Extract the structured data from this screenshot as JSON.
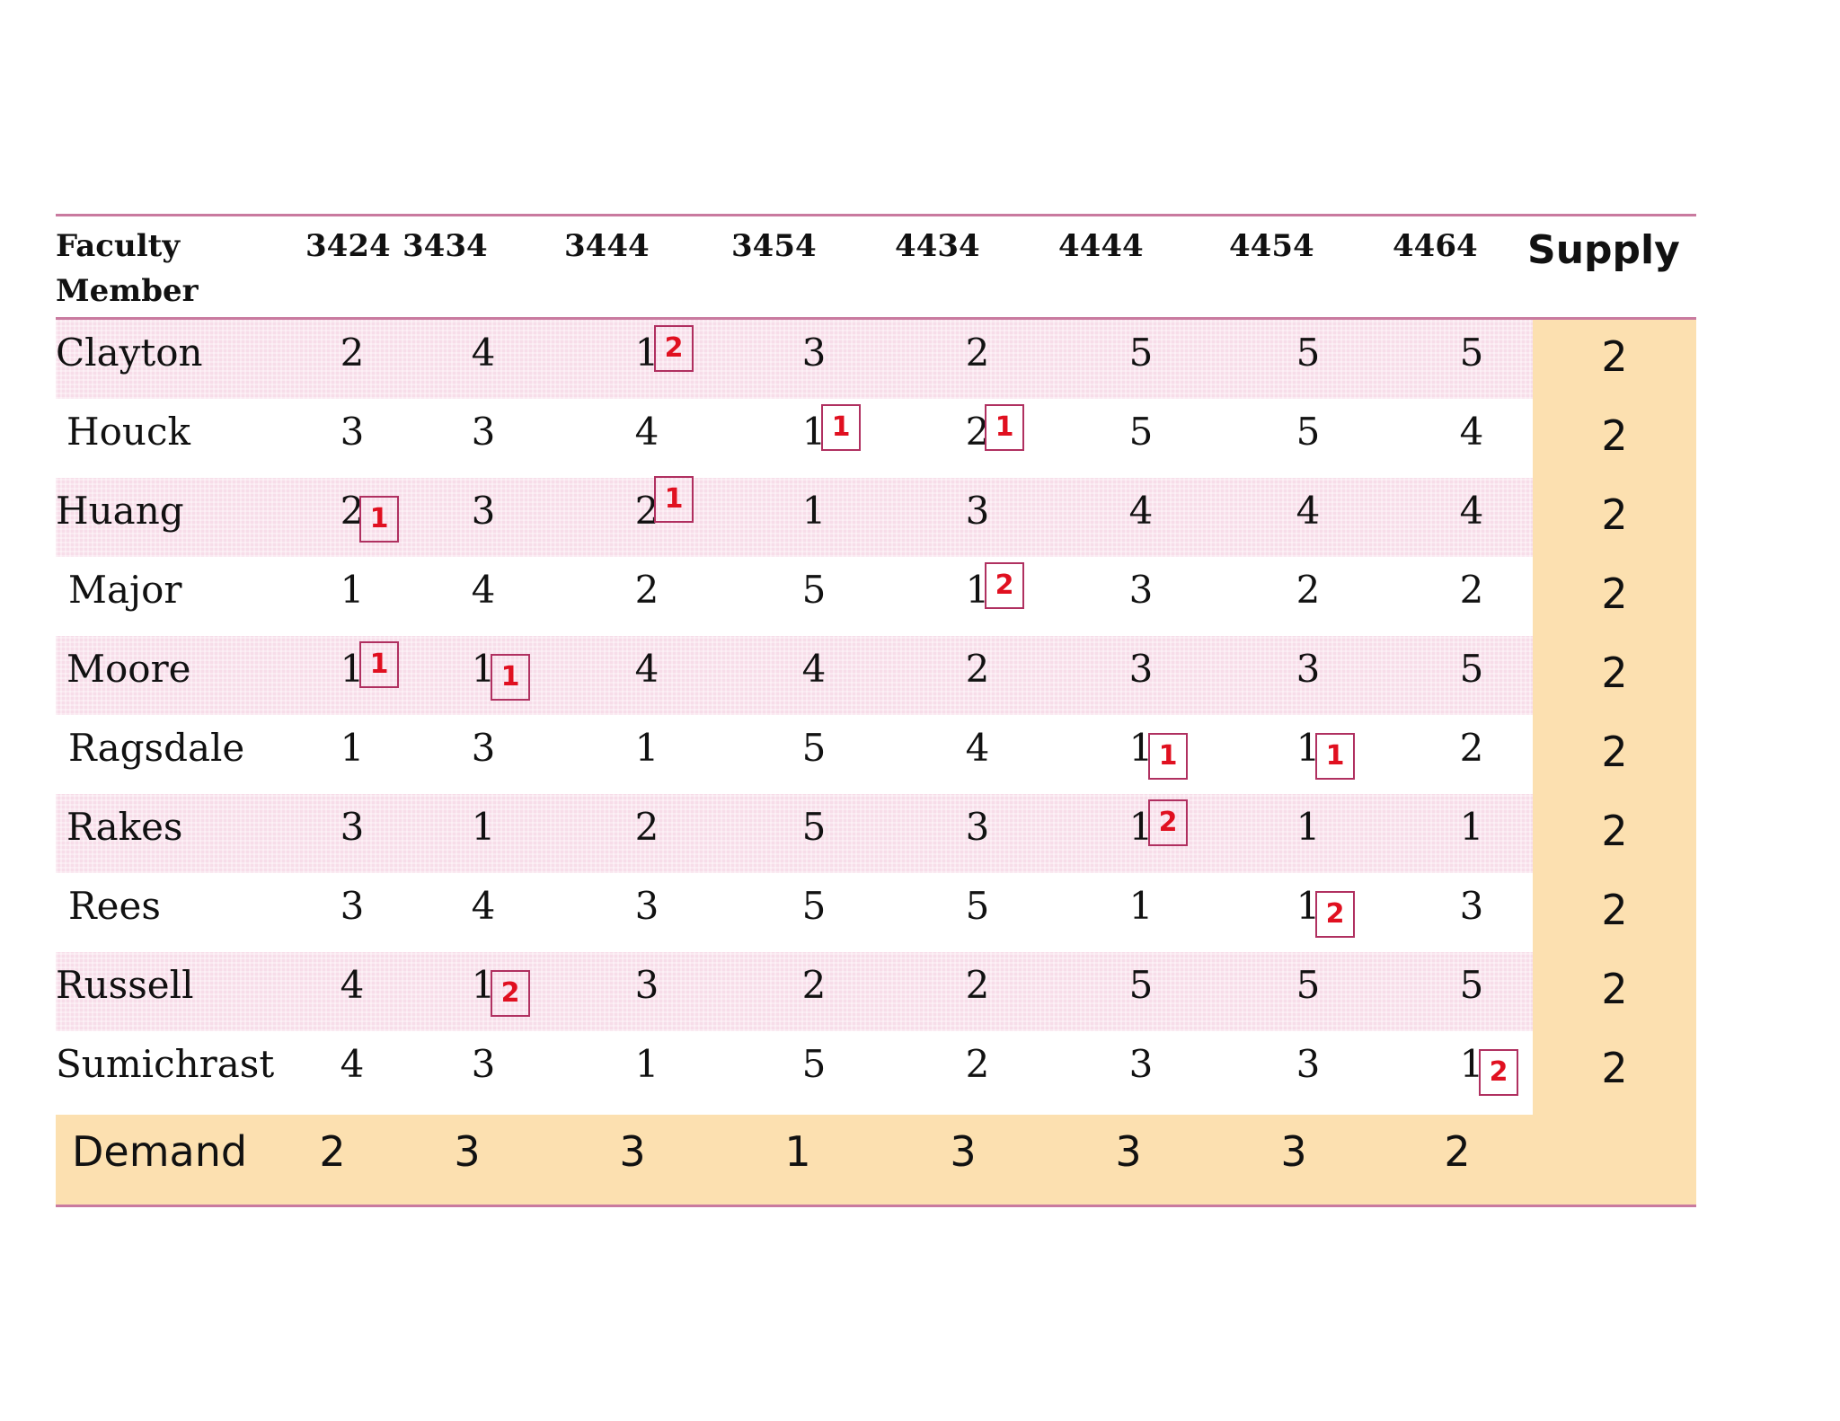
{
  "header": {
    "faculty_line1": "Faculty",
    "faculty_line2": "Member",
    "courses": [
      "3424",
      "3434",
      "3444",
      "3454",
      "4434",
      "4444",
      "4454",
      "4464"
    ],
    "supply_label": "Supply"
  },
  "rows": [
    {
      "name": "Clayton",
      "values": [
        "2",
        "4",
        "1",
        "3",
        "2",
        "5",
        "5",
        "5"
      ],
      "supply": "2"
    },
    {
      "name": "Houck",
      "values": [
        "3",
        "3",
        "4",
        "1",
        "2",
        "5",
        "5",
        "4"
      ],
      "supply": "2"
    },
    {
      "name": "Huang",
      "values": [
        "2",
        "3",
        "2",
        "1",
        "3",
        "4",
        "4",
        "4"
      ],
      "supply": "2"
    },
    {
      "name": "Major",
      "values": [
        "1",
        "4",
        "2",
        "5",
        "1",
        "3",
        "2",
        "2"
      ],
      "supply": "2"
    },
    {
      "name": "Moore",
      "values": [
        "1",
        "1",
        "4",
        "4",
        "2",
        "3",
        "3",
        "5"
      ],
      "supply": "2"
    },
    {
      "name": "Ragsdale",
      "values": [
        "1",
        "3",
        "1",
        "5",
        "4",
        "1",
        "1",
        "2"
      ],
      "supply": "2"
    },
    {
      "name": "Rakes",
      "values": [
        "3",
        "1",
        "2",
        "5",
        "3",
        "1",
        "1",
        "1"
      ],
      "supply": "2"
    },
    {
      "name": "Rees",
      "values": [
        "3",
        "4",
        "3",
        "5",
        "5",
        "1",
        "1",
        "3"
      ],
      "supply": "2"
    },
    {
      "name": "Russell",
      "values": [
        "4",
        "1",
        "3",
        "2",
        "2",
        "5",
        "5",
        "5"
      ],
      "supply": "2"
    },
    {
      "name": "Sumichrast",
      "values": [
        "4",
        "3",
        "1",
        "5",
        "2",
        "3",
        "3",
        "1"
      ],
      "supply": "2"
    }
  ],
  "assignments": [
    {
      "row": 0,
      "col": 2,
      "value": "2"
    },
    {
      "row": 1,
      "col": 3,
      "value": "1"
    },
    {
      "row": 1,
      "col": 4,
      "value": "1"
    },
    {
      "row": 2,
      "col": 0,
      "value": "1"
    },
    {
      "row": 2,
      "col": 2,
      "value": "1"
    },
    {
      "row": 3,
      "col": 4,
      "value": "2"
    },
    {
      "row": 4,
      "col": 0,
      "value": "1"
    },
    {
      "row": 4,
      "col": 1,
      "value": "1"
    },
    {
      "row": 5,
      "col": 5,
      "value": "1"
    },
    {
      "row": 5,
      "col": 6,
      "value": "1"
    },
    {
      "row": 6,
      "col": 5,
      "value": "2"
    },
    {
      "row": 7,
      "col": 6,
      "value": "2"
    },
    {
      "row": 8,
      "col": 1,
      "value": "2"
    },
    {
      "row": 9,
      "col": 7,
      "value": "2"
    }
  ],
  "demand": {
    "label": "Demand",
    "values": [
      "2",
      "3",
      "3",
      "1",
      "3",
      "3",
      "3",
      "2"
    ]
  },
  "colors": {
    "accent_line": "#c97a9f",
    "row_tint": "#f7dde9",
    "supply_demand_fill": "#fce0b0",
    "assignment_text": "#e01020",
    "assignment_border": "#b03060"
  }
}
